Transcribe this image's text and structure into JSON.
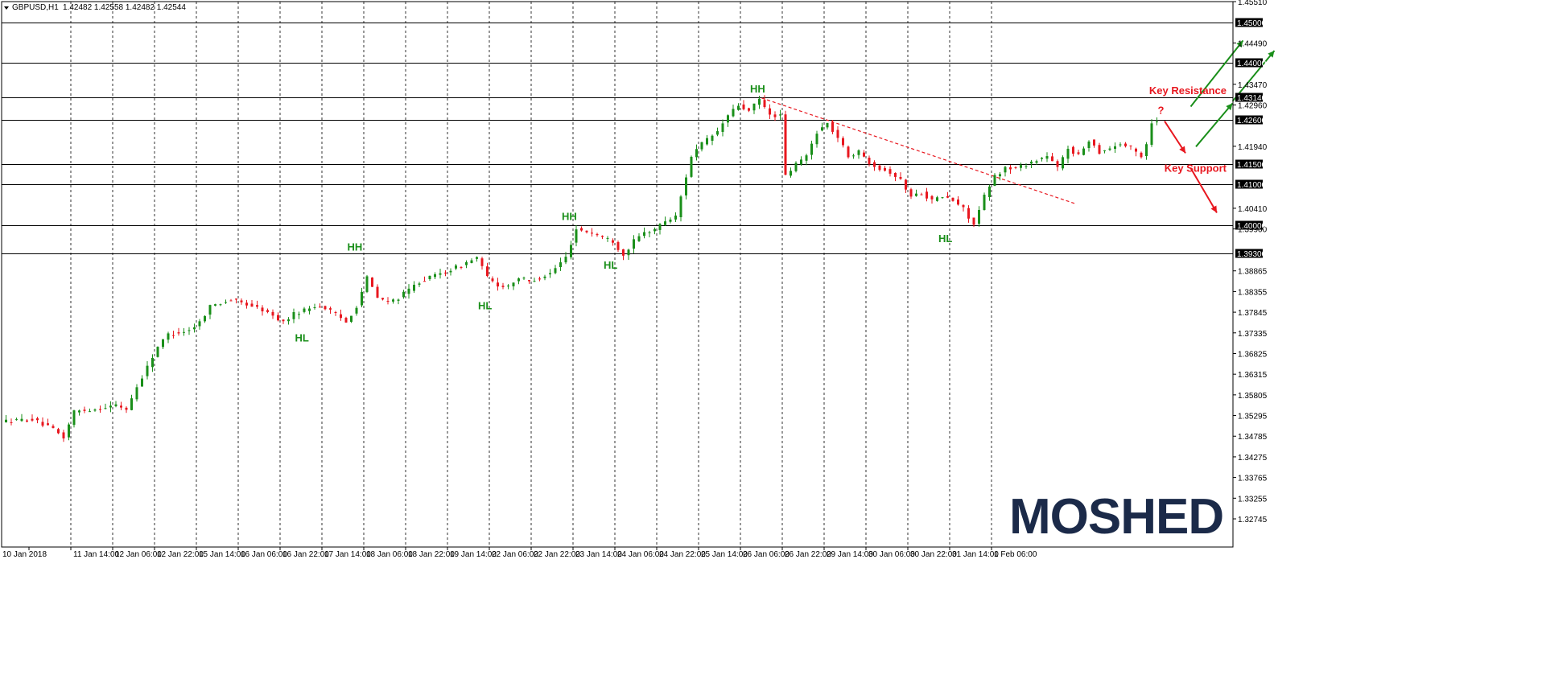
{
  "header": {
    "symbol": "GBPUSD,H1",
    "ohlc": "1.42482 1.42558 1.42482 1.42544"
  },
  "logo": {
    "text": "MOSHED"
  },
  "colors": {
    "bull": "#1a8f1a",
    "bear": "#e8171f",
    "grid": "#000000",
    "level_line": "#000000",
    "label_bg": "#000000",
    "resistance_text": "#e8171f",
    "support_text": "#e8171f",
    "swing_text": "#1a8f1a",
    "logo": "#1b2a49"
  },
  "chart_data": {
    "type": "candlestick",
    "instrument": "GBPUSD",
    "timeframe": "H1",
    "ylim": [
      1.3205,
      1.4551
    ],
    "y_ticks": [
      "1.45510",
      "1.44490",
      "1.43470",
      "1.42960",
      "1.41940",
      "1.40410",
      "1.39900",
      "1.38865",
      "1.38355",
      "1.37845",
      "1.37335",
      "1.36825",
      "1.36315",
      "1.35805",
      "1.35295",
      "1.34785",
      "1.34275",
      "1.33765",
      "1.33255",
      "1.32745"
    ],
    "x_ticks": [
      "10 Jan 2018",
      "11 Jan 14:00",
      "12 Jan 06:00",
      "12 Jan 22:00",
      "15 Jan 14:00",
      "16 Jan 06:00",
      "16 Jan 22:00",
      "17 Jan 14:00",
      "18 Jan 06:00",
      "18 Jan 22:00",
      "19 Jan 14:00",
      "22 Jan 06:00",
      "22 Jan 22:00",
      "23 Jan 14:00",
      "24 Jan 06:00",
      "24 Jan 22:00",
      "25 Jan 14:00",
      "26 Jan 06:00",
      "26 Jan 22:00",
      "29 Jan 14:00",
      "30 Jan 06:00",
      "30 Jan 22:00",
      "31 Jan 14:00",
      "1 Feb 06:00"
    ],
    "levels": [
      {
        "value": 1.45,
        "label": "1.45000"
      },
      {
        "value": 1.44,
        "label": "1.44000"
      },
      {
        "value": 1.4314,
        "label": "1.43140"
      },
      {
        "value": 1.426,
        "label": "1.42600"
      },
      {
        "value": 1.415,
        "label": "1.41500"
      },
      {
        "value": 1.41,
        "label": "1.41000"
      },
      {
        "value": 1.4,
        "label": "1.40000"
      },
      {
        "value": 1.393,
        "label": "1.39300"
      }
    ],
    "price_path": [
      [
        0,
        1.3515
      ],
      [
        6,
        1.352
      ],
      [
        10,
        1.3495
      ],
      [
        12,
        1.3475
      ],
      [
        14,
        1.354
      ],
      [
        18,
        1.3545
      ],
      [
        22,
        1.3555
      ],
      [
        24,
        1.3545
      ],
      [
        26,
        1.36
      ],
      [
        28,
        1.365
      ],
      [
        30,
        1.37
      ],
      [
        32,
        1.373
      ],
      [
        36,
        1.374
      ],
      [
        38,
        1.376
      ],
      [
        40,
        1.38
      ],
      [
        44,
        1.3815
      ],
      [
        48,
        1.38
      ],
      [
        50,
        1.379
      ],
      [
        54,
        1.376
      ],
      [
        56,
        1.378
      ],
      [
        60,
        1.38
      ],
      [
        62,
        1.3795
      ],
      [
        64,
        1.378
      ],
      [
        66,
        1.376
      ],
      [
        68,
        1.38
      ],
      [
        70,
        1.387
      ],
      [
        72,
        1.382
      ],
      [
        74,
        1.381
      ],
      [
        76,
        1.382
      ],
      [
        78,
        1.384
      ],
      [
        80,
        1.386
      ],
      [
        84,
        1.388
      ],
      [
        88,
        1.39
      ],
      [
        91,
        1.392
      ],
      [
        93,
        1.387
      ],
      [
        95,
        1.385
      ],
      [
        97,
        1.385
      ],
      [
        99,
        1.387
      ],
      [
        101,
        1.386
      ],
      [
        103,
        1.387
      ],
      [
        105,
        1.388
      ],
      [
        108,
        1.392
      ],
      [
        110,
        1.399
      ],
      [
        113,
        1.398
      ],
      [
        117,
        1.396
      ],
      [
        119,
        1.3925
      ],
      [
        121,
        1.396
      ],
      [
        123,
        1.398
      ],
      [
        125,
        1.399
      ],
      [
        127,
        1.401
      ],
      [
        129,
        1.402
      ],
      [
        132,
        1.417
      ],
      [
        134,
        1.42
      ],
      [
        137,
        1.423
      ],
      [
        139,
        1.427
      ],
      [
        141,
        1.4295
      ],
      [
        143,
        1.428
      ],
      [
        145,
        1.431
      ],
      [
        147,
        1.427
      ],
      [
        149,
        1.427
      ],
      [
        150,
        1.412
      ],
      [
        152,
        1.415
      ],
      [
        154,
        1.417
      ],
      [
        156,
        1.423
      ],
      [
        158,
        1.425
      ],
      [
        160,
        1.4215
      ],
      [
        162,
        1.417
      ],
      [
        164,
        1.418
      ],
      [
        166,
        1.4155
      ],
      [
        168,
        1.414
      ],
      [
        170,
        1.413
      ],
      [
        172,
        1.411
      ],
      [
        174,
        1.407
      ],
      [
        176,
        1.408
      ],
      [
        178,
        1.406
      ],
      [
        180,
        1.407
      ],
      [
        182,
        1.406
      ],
      [
        184,
        1.404
      ],
      [
        186,
        1.4
      ],
      [
        188,
        1.407
      ],
      [
        190,
        1.412
      ],
      [
        192,
        1.414
      ],
      [
        194,
        1.414
      ],
      [
        196,
        1.415
      ],
      [
        198,
        1.416
      ],
      [
        200,
        1.417
      ],
      [
        202,
        1.414
      ],
      [
        204,
        1.419
      ],
      [
        206,
        1.417
      ],
      [
        208,
        1.421
      ],
      [
        210,
        1.418
      ],
      [
        212,
        1.419
      ],
      [
        214,
        1.42
      ],
      [
        216,
        1.419
      ],
      [
        218,
        1.417
      ],
      [
        219,
        1.42
      ],
      [
        220,
        1.4254
      ]
    ],
    "candle_count": 221,
    "annotations": {
      "swings": [
        {
          "text": "HH",
          "i": 144,
          "v": 1.4335
        },
        {
          "text": "HH",
          "i": 108,
          "v": 1.402
        },
        {
          "text": "HH",
          "i": 67,
          "v": 1.3945
        },
        {
          "text": "HL",
          "i": 57,
          "v": 1.372
        },
        {
          "text": "HL",
          "i": 92,
          "v": 1.38
        },
        {
          "text": "HL",
          "i": 116,
          "v": 1.39
        },
        {
          "text": "HL",
          "i": 180,
          "v": 1.3965
        }
      ],
      "zones": [
        {
          "text": "Key Resistance",
          "v": 1.4331
        },
        {
          "text": "Key Support",
          "v": 1.4139
        }
      ],
      "question": {
        "text": "?",
        "i": 221,
        "v": 1.4282
      },
      "trendline": {
        "start": [
          145,
          1.4313
        ],
        "end": [
          205,
          1.4052
        ]
      },
      "arrows_up": [
        {
          "start": [
            227,
            1.4292
          ],
          "end": [
            237,
            1.4455
          ]
        },
        {
          "start": [
            228,
            1.4193
          ],
          "end": [
            235,
            1.43
          ]
        },
        {
          "start": [
            235,
            1.4305
          ],
          "end": [
            243,
            1.443
          ]
        }
      ],
      "arrows_down": [
        {
          "start": [
            222,
            1.4256
          ],
          "end": [
            226,
            1.4177
          ]
        },
        {
          "start": [
            227,
            1.414
          ],
          "end": [
            232,
            1.403
          ]
        }
      ]
    }
  }
}
